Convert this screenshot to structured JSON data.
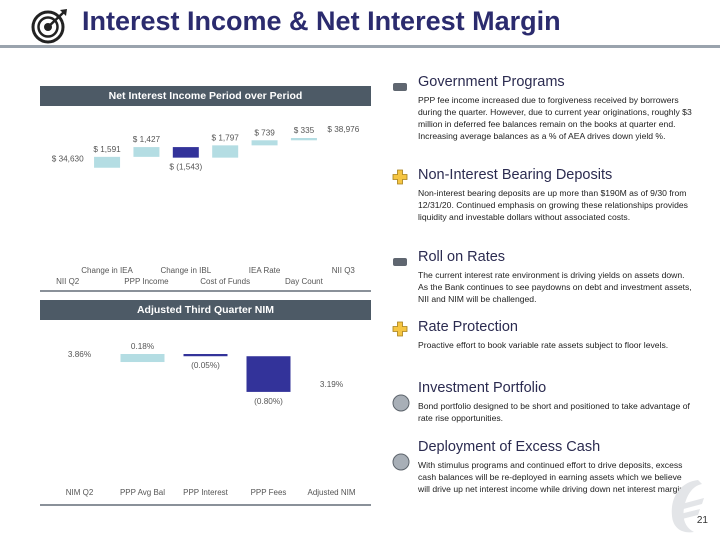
{
  "header": {
    "title": "Interest Income & Net Interest Margin"
  },
  "page_number": "21",
  "chart_data": [
    {
      "type": "waterfall",
      "title": "Net Interest Income Period over Period",
      "categories": [
        "NII Q2",
        "Change in IEA",
        "PPP Income",
        "Change in IBL",
        "Cost of Funds",
        "IEA Rate",
        "Day Count",
        "NII Q3"
      ],
      "values": [
        34630,
        1591,
        1427,
        -1543,
        1797,
        739,
        335,
        38976
      ],
      "labels": [
        "$ 34,630",
        "$ 1,591",
        "$ 1,427",
        "$ (1,543)",
        "$ 1,797",
        "$ 739",
        "$ 335",
        "$ 38,976"
      ],
      "colors": {
        "increase": "#b4dde3",
        "decrease": "#33339a"
      }
    },
    {
      "type": "waterfall",
      "title": "Adjusted Third Quarter NIM",
      "categories": [
        "NIM Q2",
        "PPP Avg Bal",
        "PPP Interest",
        "PPP Fees",
        "Adjusted NIM"
      ],
      "values": [
        3.86,
        0.18,
        -0.05,
        -0.8,
        3.19
      ],
      "labels": [
        "3.86%",
        "0.18%",
        "(0.05%)",
        "(0.80%)",
        "3.19%"
      ],
      "colors": {
        "increase": "#b4dde3",
        "decrease": "#33339a"
      }
    }
  ],
  "bullets": [
    {
      "icon": "minus-icon",
      "title": "Government Programs",
      "desc": "PPP fee income increased due to forgiveness received by borrowers during the quarter.  However, due to current year originations, roughly $3 million in deferred fee balances remain on the books at quarter end. Increasing average balances as a % of AEA drives down yield %."
    },
    {
      "icon": "plus-icon",
      "title": "Non-Interest Bearing Deposits",
      "desc": "Non-interest bearing deposits are up more than $190M as of 9/30 from 12/31/20.  Continued emphasis on growing these relationships provides liquidity and investable dollars without associated costs."
    },
    {
      "icon": "minus-icon",
      "title": "Roll on Rates",
      "desc": "The current interest rate environment is driving yields on assets down.  As the Bank continues to see paydowns on debt and investment assets, NII and NIM will be challenged."
    },
    {
      "icon": "plus-icon",
      "title": "Rate Protection",
      "desc": "Proactive effort to book variable rate assets subject to floor levels."
    },
    {
      "icon": "circle-icon",
      "title": "Investment Portfolio",
      "desc": "Bond portfolio designed to be short and positioned to take advantage of rate rise opportunities."
    },
    {
      "icon": "circle-icon",
      "title": "Deployment of Excess Cash",
      "desc": "With stimulus programs and continued effort to drive deposits, excess cash balances will be re-deployed in earning assets which we believe will drive up net interest income while driving down net interest margin."
    }
  ]
}
